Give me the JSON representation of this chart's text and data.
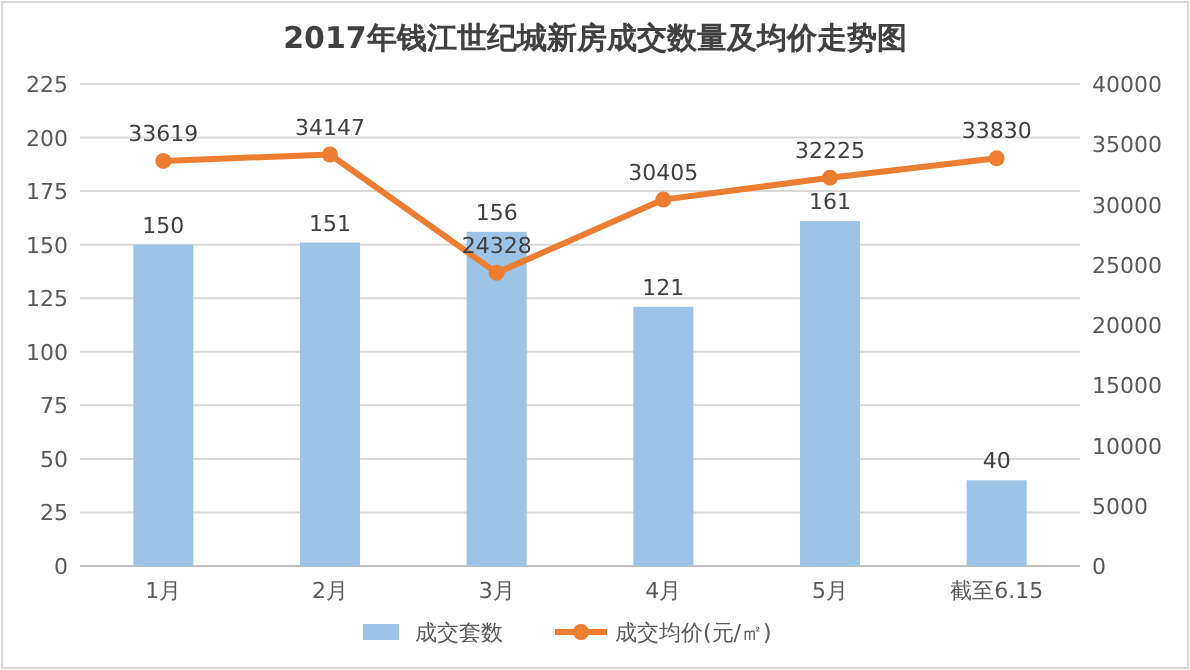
{
  "chart_data": {
    "type": "bar",
    "title": "2017年钱江世纪城新房成交数量及均价走势图",
    "categories": [
      "1月",
      "2月",
      "3月",
      "4月",
      "5月",
      "截至6.15"
    ],
    "series": [
      {
        "name": "成交套数",
        "color": "#9dc3e6",
        "values": [
          150,
          151,
          156,
          121,
          161,
          40
        ]
      },
      {
        "name": "成交均价(元/㎡)",
        "type": "line",
        "axis": "y2",
        "color": "#ed7d31",
        "marker": "circle",
        "values": [
          33619,
          34147,
          24328,
          30405,
          32225,
          33830
        ]
      }
    ],
    "ylim": [
      0,
      225
    ],
    "yticks": [
      0,
      25,
      50,
      75,
      100,
      125,
      150,
      175,
      200,
      225
    ],
    "y2lim": [
      0,
      40000
    ],
    "y2ticks": [
      0,
      5000,
      10000,
      15000,
      20000,
      25000,
      30000,
      35000,
      40000
    ],
    "grid": "y",
    "legend": "bottom",
    "data_labels": true
  }
}
